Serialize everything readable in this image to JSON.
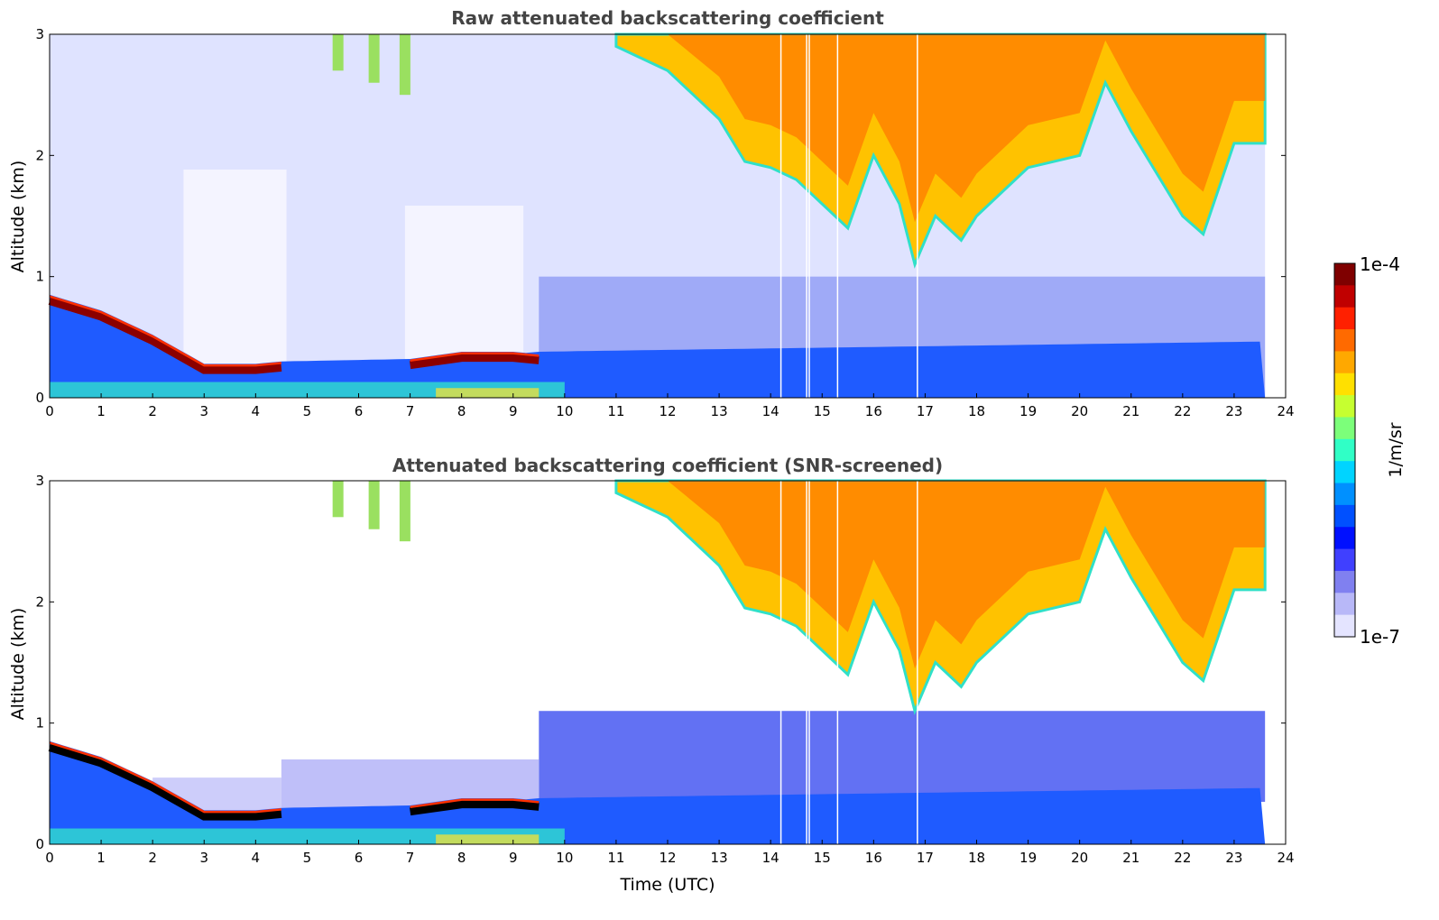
{
  "chart_data": [
    {
      "type": "heatmap",
      "title": "Raw attenuated backscattering coefficient",
      "xlabel": "",
      "ylabel": "Altitude (km)",
      "xlim": [
        0,
        24
      ],
      "ylim": [
        0,
        3
      ],
      "x_ticks": [
        "0",
        "1",
        "2",
        "3",
        "4",
        "5",
        "6",
        "7",
        "8",
        "9",
        "10",
        "11",
        "12",
        "13",
        "14",
        "15",
        "16",
        "17",
        "18",
        "19",
        "20",
        "21",
        "22",
        "23",
        "24"
      ],
      "y_ticks": [
        "0",
        "1",
        "2",
        "3"
      ],
      "data_end_hour": 23.6,
      "screened": false,
      "layer_top_km": [
        [
          0,
          0.85
        ],
        [
          1,
          0.72
        ],
        [
          2,
          0.52
        ],
        [
          3,
          0.28
        ],
        [
          4,
          0.28
        ],
        [
          4.5,
          0.3
        ],
        [
          7,
          0.32
        ],
        [
          8,
          0.38
        ],
        [
          9,
          0.38
        ],
        [
          9.5,
          0.36
        ]
      ],
      "cloud_base_km": [
        [
          11,
          2.9
        ],
        [
          12,
          2.7
        ],
        [
          13,
          2.3
        ],
        [
          13.5,
          1.95
        ],
        [
          14,
          1.9
        ],
        [
          14.5,
          1.8
        ],
        [
          15,
          1.6
        ],
        [
          15.5,
          1.4
        ],
        [
          16,
          2.0
        ],
        [
          16.5,
          1.6
        ],
        [
          16.8,
          1.1
        ],
        [
          17.2,
          1.5
        ],
        [
          17.7,
          1.3
        ],
        [
          18,
          1.5
        ],
        [
          19,
          1.9
        ],
        [
          20,
          2.0
        ],
        [
          20.5,
          2.6
        ],
        [
          21,
          2.2
        ],
        [
          22,
          1.5
        ],
        [
          22.4,
          1.35
        ],
        [
          23,
          2.1
        ],
        [
          23.6,
          2.1
        ]
      ]
    },
    {
      "type": "heatmap",
      "title": "Attenuated backscattering coefficient (SNR-screened)",
      "xlabel": "Time (UTC)",
      "ylabel": "Altitude (km)",
      "xlim": [
        0,
        24
      ],
      "ylim": [
        0,
        3
      ],
      "x_ticks": [
        "0",
        "1",
        "2",
        "3",
        "4",
        "5",
        "6",
        "7",
        "8",
        "9",
        "10",
        "11",
        "12",
        "13",
        "14",
        "15",
        "16",
        "17",
        "18",
        "19",
        "20",
        "21",
        "22",
        "23",
        "24"
      ],
      "y_ticks": [
        "0",
        "1",
        "2",
        "3"
      ],
      "data_end_hour": 23.6,
      "screened": true,
      "layer_top_km": [
        [
          0,
          0.85
        ],
        [
          1,
          0.72
        ],
        [
          2,
          0.52
        ],
        [
          3,
          0.28
        ],
        [
          4,
          0.28
        ],
        [
          4.5,
          0.3
        ],
        [
          7,
          0.32
        ],
        [
          8,
          0.38
        ],
        [
          9,
          0.38
        ],
        [
          9.5,
          0.36
        ]
      ],
      "cloud_base_km": [
        [
          11,
          2.9
        ],
        [
          12,
          2.7
        ],
        [
          13,
          2.3
        ],
        [
          13.5,
          1.95
        ],
        [
          14,
          1.9
        ],
        [
          14.5,
          1.8
        ],
        [
          15,
          1.6
        ],
        [
          15.5,
          1.4
        ],
        [
          16,
          2.0
        ],
        [
          16.5,
          1.6
        ],
        [
          16.8,
          1.1
        ],
        [
          17.2,
          1.5
        ],
        [
          17.7,
          1.3
        ],
        [
          18,
          1.5
        ],
        [
          19,
          1.9
        ],
        [
          20,
          2.0
        ],
        [
          20.5,
          2.6
        ],
        [
          21,
          2.2
        ],
        [
          22,
          1.5
        ],
        [
          22.4,
          1.35
        ],
        [
          23,
          2.1
        ],
        [
          23.6,
          2.1
        ]
      ]
    }
  ],
  "colorbar": {
    "label": "1/m/sr",
    "max_label": "1e-4",
    "min_label": "1e-7",
    "colors": [
      "#7f0000",
      "#c00000",
      "#ff2000",
      "#ff6a00",
      "#ffa800",
      "#ffe000",
      "#c6ff30",
      "#7cff7a",
      "#30ffc6",
      "#00d4ff",
      "#0090ff",
      "#0050ff",
      "#0010ff",
      "#4040ff",
      "#8080f0",
      "#b8b8f8",
      "#e4e4ff"
    ]
  }
}
